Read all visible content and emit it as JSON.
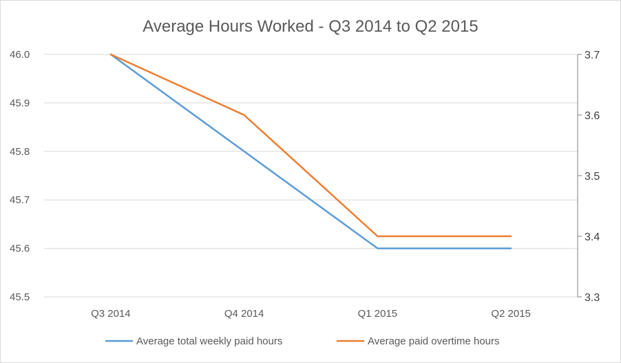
{
  "chart_data": {
    "type": "line",
    "title": "Average Hours Worked - Q3 2014 to Q2 2015",
    "categories": [
      "Q3 2014",
      "Q4 2014",
      "Q1 2015",
      "Q2 2015"
    ],
    "series": [
      {
        "name": "Average total weekly paid hours",
        "axis": "left",
        "color": "#5B9BD5",
        "values": [
          46.0,
          45.8,
          45.6,
          45.6
        ]
      },
      {
        "name": "Average paid overtime hours",
        "axis": "right",
        "color": "#ED7D31",
        "values": [
          3.7,
          3.6,
          3.4,
          3.4
        ]
      }
    ],
    "y_left": {
      "range": [
        45.5,
        46.0
      ],
      "ticks": [
        "46.0",
        "45.9",
        "45.8",
        "45.7",
        "45.6",
        "45.5"
      ]
    },
    "y_right": {
      "range": [
        3.3,
        3.7
      ],
      "ticks": [
        "3.7",
        "3.6",
        "3.5",
        "3.4",
        "3.3"
      ]
    },
    "gridlines": true,
    "legend_position": "bottom"
  }
}
